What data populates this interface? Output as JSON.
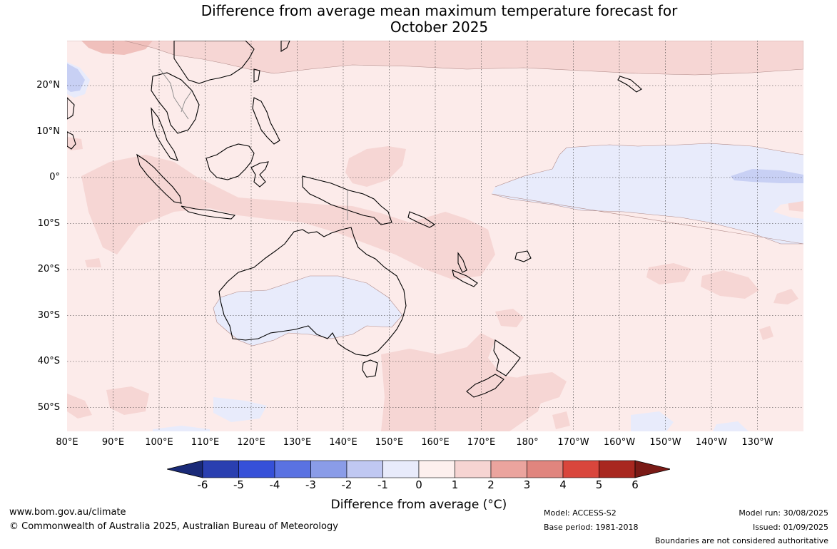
{
  "title_line1": "Difference from average mean maximum temperature forecast for",
  "title_line2": "October 2025",
  "lat_labels": [
    "20°N",
    "10°N",
    "0°",
    "10°S",
    "20°S",
    "30°S",
    "40°S",
    "50°S"
  ],
  "lon_labels": [
    "80°E",
    "90°E",
    "100°E",
    "110°E",
    "120°E",
    "130°E",
    "140°E",
    "150°E",
    "160°E",
    "170°E",
    "180°",
    "170°W",
    "160°W",
    "150°W",
    "140°W",
    "130°W"
  ],
  "colorbar": {
    "ticks": [
      "-6",
      "-5",
      "-4",
      "-3",
      "-2",
      "-1",
      "0",
      "1",
      "2",
      "3",
      "4",
      "5",
      "6"
    ],
    "colors": [
      "#1a2a78",
      "#2a3fb0",
      "#3650d8",
      "#5a72e2",
      "#8a9ce8",
      "#c0c8f2",
      "#e8ebfb",
      "#fdf0ee",
      "#f6d4d2",
      "#eba49e",
      "#e0857e",
      "#d9463c",
      "#a8271f",
      "#7a1a16"
    ],
    "label": "Difference from average (°C)"
  },
  "map": {
    "background": "#fcebea",
    "warm_light": "#f6d6d4",
    "warm_mid": "#f0c0bc",
    "cool_light": "#e8ebfb",
    "cool_mid": "#c8d0f4",
    "land_outline": "#000000",
    "border_outline": "#888888"
  },
  "footer": {
    "url": "www.bom.gov.au/climate",
    "copyright": "© Commonwealth of Australia 2025, Australian Bureau of Meteorology",
    "model": "Model: ACCESS-S2",
    "base_period": "Base period: 1981-2018",
    "model_run": "Model run: 30/08/2025",
    "issued": "Issued: 01/09/2025",
    "boundaries": "Boundaries are not considered authoritative"
  }
}
